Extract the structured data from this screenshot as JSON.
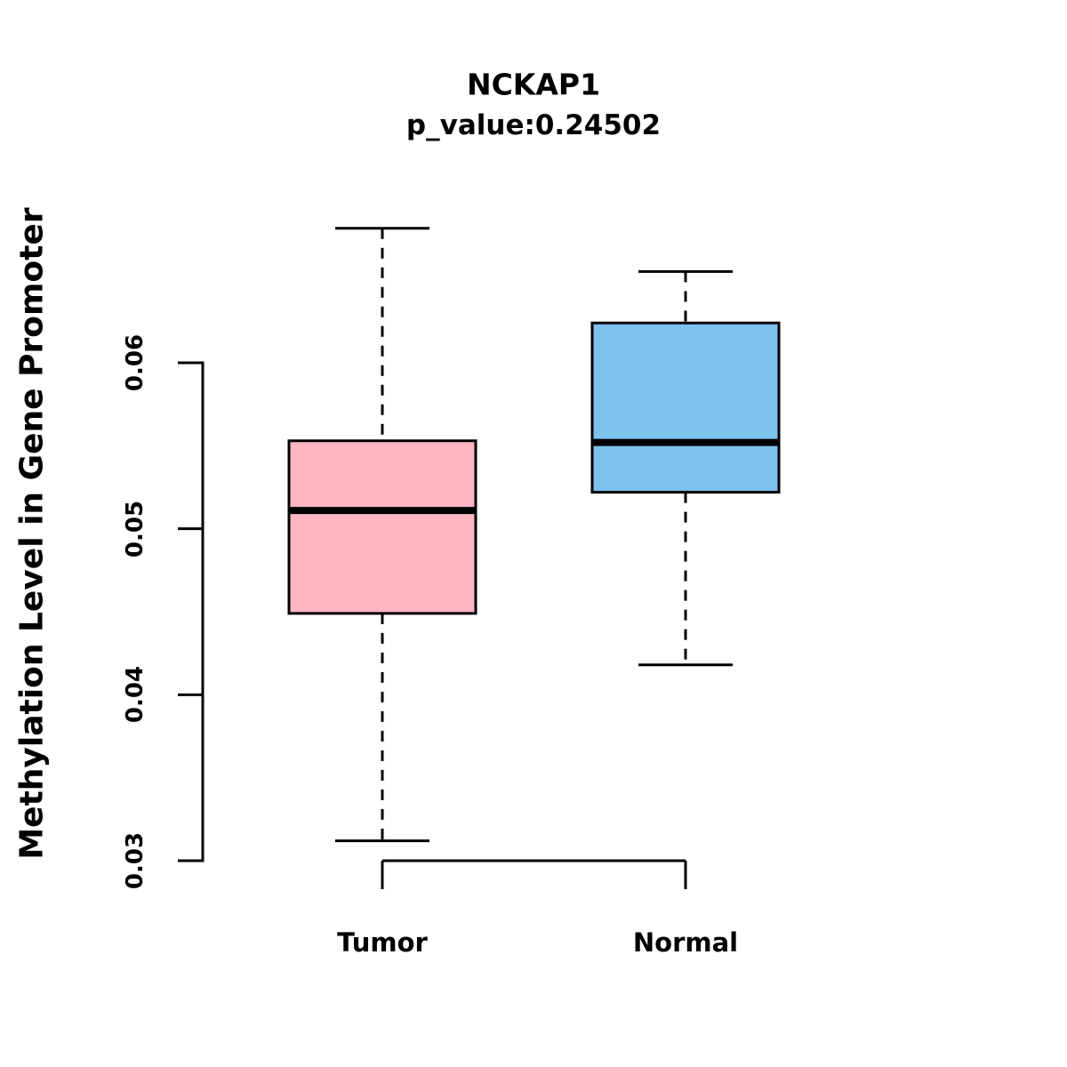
{
  "title": "NCKAP1",
  "subtitle": "p_value:0.24502",
  "chart_data": {
    "type": "boxplot",
    "title": "NCKAP1",
    "subtitle": "p_value:0.24502",
    "xlabel": "",
    "ylabel": "Methylation Level in Gene Promoter",
    "yticks": [
      0.03,
      0.04,
      0.05,
      0.06
    ],
    "ytick_labels": [
      "0.03",
      "0.04",
      "0.05",
      "0.06"
    ],
    "ylim": [
      0.028,
      0.069
    ],
    "grid": false,
    "legend": "none",
    "categories": [
      "Tumor",
      "Normal"
    ],
    "series": [
      {
        "name": "Tumor",
        "color": "#FFB6C1",
        "whisker_low": 0.0312,
        "q1": 0.0449,
        "median": 0.0511,
        "q3": 0.0553,
        "whisker_high": 0.0681
      },
      {
        "name": "Normal",
        "color": "#7EC0EE",
        "whisker_low": 0.0418,
        "q1": 0.0522,
        "median": 0.0552,
        "q3": 0.0624,
        "whisker_high": 0.0655
      }
    ]
  }
}
